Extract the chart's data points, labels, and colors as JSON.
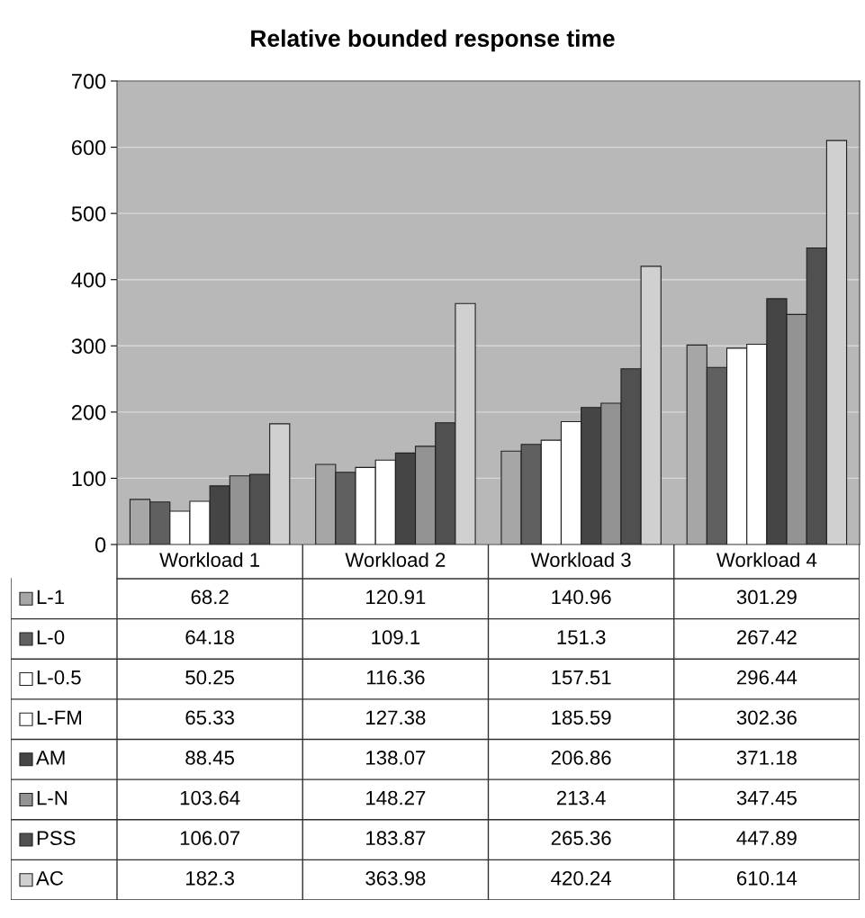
{
  "chart_data": {
    "type": "bar",
    "title": "Relative bounded response time",
    "categories": [
      "Workload 1",
      "Workload 2",
      "Workload 3",
      "Workload 4"
    ],
    "series": [
      {
        "name": "L-1",
        "color": "#a6a6a6",
        "values": [
          68.2,
          120.91,
          140.96,
          301.29
        ]
      },
      {
        "name": "L-0",
        "color": "#606060",
        "values": [
          64.18,
          109.1,
          151.3,
          267.42
        ]
      },
      {
        "name": "L-0.5",
        "color": "#ffffff",
        "values": [
          50.25,
          116.36,
          157.51,
          296.44
        ]
      },
      {
        "name": "L-FM",
        "color": "#ffffff",
        "values": [
          65.33,
          127.38,
          185.59,
          302.36
        ]
      },
      {
        "name": "AM",
        "color": "#454545",
        "values": [
          88.45,
          138.07,
          206.86,
          371.18
        ]
      },
      {
        "name": "L-N",
        "color": "#939393",
        "values": [
          103.64,
          148.27,
          213.4,
          347.45
        ]
      },
      {
        "name": "PSS",
        "color": "#505050",
        "values": [
          106.07,
          183.87,
          265.36,
          447.89
        ]
      },
      {
        "name": "AC",
        "color": "#d0d0d0",
        "values": [
          182.3,
          363.98,
          420.24,
          610.14
        ]
      }
    ],
    "ylim": [
      0,
      700
    ],
    "yticks": [
      0,
      100,
      200,
      300,
      400,
      500,
      600,
      700
    ],
    "grid": "y",
    "data_labels": true,
    "legend": "bottom"
  }
}
